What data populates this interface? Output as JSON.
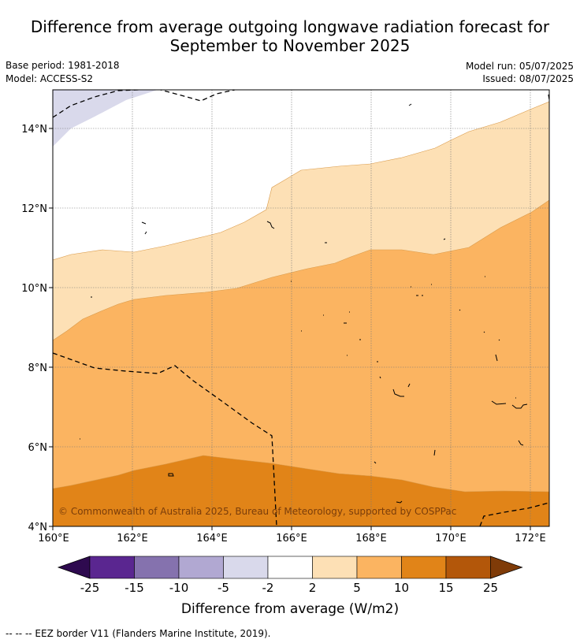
{
  "title": {
    "line1": "Difference from average outgoing longwave radiation forecast for",
    "line2": "September to November 2025"
  },
  "meta": {
    "base_period": "Base period: 1981-2018",
    "model": "Model: ACCESS-S2",
    "model_run": "Model run: 05/07/2025",
    "issued": "Issued: 08/07/2025"
  },
  "map": {
    "lon_ticks": [
      "160°E",
      "162°E",
      "164°E",
      "166°E",
      "168°E",
      "170°E",
      "172°E"
    ],
    "lat_ticks": [
      "4°N",
      "6°N",
      "8°N",
      "10°N",
      "12°N",
      "14°N"
    ],
    "copyright": "© Commonwealth of Australia 2025, Bureau of Meteorology, supported by COSPPac"
  },
  "colorbar": {
    "ticks": [
      "-25",
      "-15",
      "-10",
      "-5",
      "-2",
      "2",
      "5",
      "10",
      "15",
      "25"
    ],
    "colors": [
      "#5a2690",
      "#8572ae",
      "#b1a8d2",
      "#d9d9eb",
      "#ffffff",
      "#fde0b5",
      "#fbb461",
      "#e18418",
      "#b3570a"
    ],
    "under_color": "#2e0a4f",
    "over_color": "#7f3b08",
    "label": "Difference from average (W/m2)"
  },
  "footnote": "--  --  -- EEZ border V11 (Flanders Marine Institute, 2019)."
}
